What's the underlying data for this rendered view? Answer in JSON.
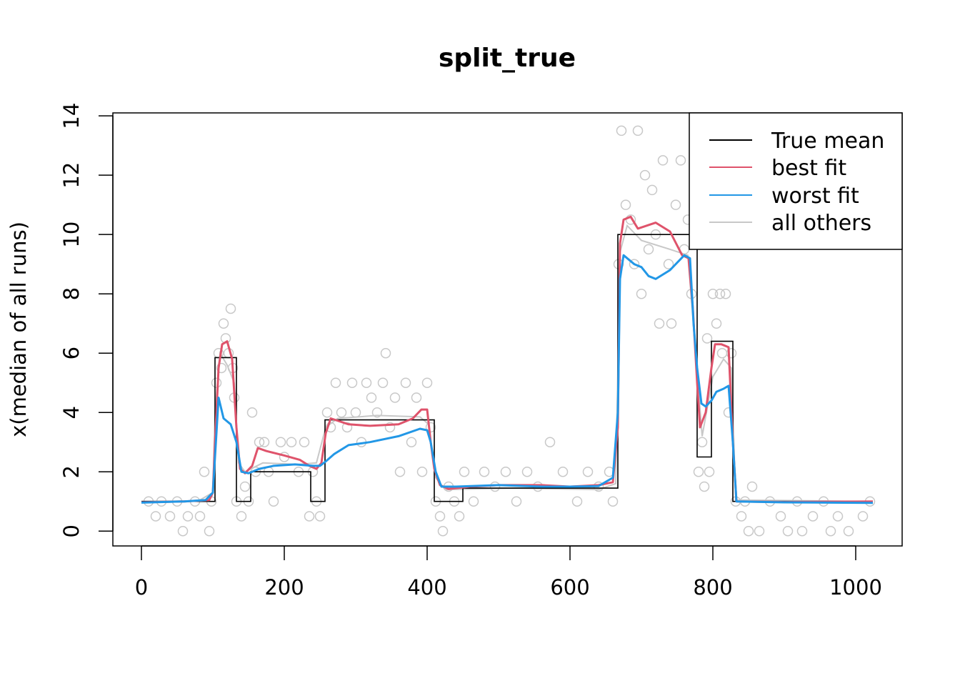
{
  "chart_data": {
    "type": "line",
    "title": "split_true",
    "xlabel": "",
    "ylabel": "x(median of all runs)",
    "xlim": [
      -40,
      1065
    ],
    "ylim": [
      -0.5,
      14.1
    ],
    "x_ticks": [
      0,
      200,
      400,
      600,
      800,
      1000
    ],
    "y_ticks": [
      0,
      2,
      4,
      6,
      8,
      10,
      12,
      14
    ],
    "legend_position": "top-right",
    "legend": [
      {
        "label": "True mean",
        "color": "#000000"
      },
      {
        "label": "best fit",
        "color": "#DF536B"
      },
      {
        "label": "worst fit",
        "color": "#2297E6"
      },
      {
        "label": "all others",
        "color": "#C8C8C8"
      }
    ],
    "true_mean_segments": [
      {
        "x0": 0,
        "x1": 103,
        "y": 1.0
      },
      {
        "x0": 103,
        "x1": 133,
        "y": 5.85
      },
      {
        "x0": 133,
        "x1": 153,
        "y": 1.0
      },
      {
        "x0": 153,
        "x1": 237,
        "y": 2.0
      },
      {
        "x0": 237,
        "x1": 257,
        "y": 1.0
      },
      {
        "x0": 257,
        "x1": 410,
        "y": 3.75
      },
      {
        "x0": 410,
        "x1": 450,
        "y": 1.0
      },
      {
        "x0": 450,
        "x1": 667,
        "y": 1.45
      },
      {
        "x0": 667,
        "x1": 778,
        "y": 10.0
      },
      {
        "x0": 778,
        "x1": 798,
        "y": 2.5
      },
      {
        "x0": 798,
        "x1": 828,
        "y": 6.4
      },
      {
        "x0": 828,
        "x1": 1024,
        "y": 1.0
      }
    ],
    "series": [
      {
        "name": "best fit",
        "color": "#DF536B",
        "points": [
          [
            0,
            0.97
          ],
          [
            60,
            1.0
          ],
          [
            95,
            1.05
          ],
          [
            100,
            1.3
          ],
          [
            103,
            3.0
          ],
          [
            108,
            5.5
          ],
          [
            113,
            6.3
          ],
          [
            120,
            6.4
          ],
          [
            127,
            5.8
          ],
          [
            133,
            3.5
          ],
          [
            138,
            2.1
          ],
          [
            145,
            1.95
          ],
          [
            155,
            2.2
          ],
          [
            163,
            2.8
          ],
          [
            175,
            2.7
          ],
          [
            200,
            2.55
          ],
          [
            222,
            2.4
          ],
          [
            235,
            2.2
          ],
          [
            245,
            2.1
          ],
          [
            252,
            2.3
          ],
          [
            258,
            3.3
          ],
          [
            265,
            3.8
          ],
          [
            290,
            3.6
          ],
          [
            320,
            3.55
          ],
          [
            360,
            3.6
          ],
          [
            380,
            3.8
          ],
          [
            392,
            4.1
          ],
          [
            400,
            4.1
          ],
          [
            405,
            3.0
          ],
          [
            410,
            2.1
          ],
          [
            418,
            1.55
          ],
          [
            430,
            1.42
          ],
          [
            460,
            1.5
          ],
          [
            500,
            1.55
          ],
          [
            560,
            1.55
          ],
          [
            600,
            1.5
          ],
          [
            640,
            1.55
          ],
          [
            660,
            1.65
          ],
          [
            667,
            3.5
          ],
          [
            670,
            9.7
          ],
          [
            675,
            10.5
          ],
          [
            685,
            10.6
          ],
          [
            695,
            10.2
          ],
          [
            720,
            10.4
          ],
          [
            740,
            10.1
          ],
          [
            757,
            9.3
          ],
          [
            766,
            9.2
          ],
          [
            772,
            7.5
          ],
          [
            778,
            5.0
          ],
          [
            782,
            3.5
          ],
          [
            790,
            4.0
          ],
          [
            798,
            5.5
          ],
          [
            803,
            6.3
          ],
          [
            812,
            6.3
          ],
          [
            822,
            6.2
          ],
          [
            828,
            3.0
          ],
          [
            833,
            1.0
          ],
          [
            900,
            0.98
          ],
          [
            1024,
            1.0
          ]
        ]
      },
      {
        "name": "worst fit",
        "color": "#2297E6",
        "points": [
          [
            0,
            0.96
          ],
          [
            60,
            1.0
          ],
          [
            90,
            1.05
          ],
          [
            100,
            1.3
          ],
          [
            103,
            2.5
          ],
          [
            108,
            4.5
          ],
          [
            115,
            3.8
          ],
          [
            125,
            3.6
          ],
          [
            133,
            3.0
          ],
          [
            140,
            2.0
          ],
          [
            150,
            1.95
          ],
          [
            165,
            2.1
          ],
          [
            185,
            2.2
          ],
          [
            215,
            2.25
          ],
          [
            240,
            2.2
          ],
          [
            250,
            2.2
          ],
          [
            258,
            2.35
          ],
          [
            270,
            2.6
          ],
          [
            290,
            2.9
          ],
          [
            320,
            3.0
          ],
          [
            360,
            3.2
          ],
          [
            390,
            3.45
          ],
          [
            400,
            3.4
          ],
          [
            405,
            3.0
          ],
          [
            412,
            2.0
          ],
          [
            420,
            1.5
          ],
          [
            440,
            1.5
          ],
          [
            500,
            1.55
          ],
          [
            560,
            1.5
          ],
          [
            600,
            1.5
          ],
          [
            640,
            1.52
          ],
          [
            660,
            1.8
          ],
          [
            667,
            4.0
          ],
          [
            670,
            8.5
          ],
          [
            675,
            9.3
          ],
          [
            690,
            9.0
          ],
          [
            700,
            8.9
          ],
          [
            710,
            8.6
          ],
          [
            720,
            8.5
          ],
          [
            740,
            8.8
          ],
          [
            760,
            9.3
          ],
          [
            768,
            9.2
          ],
          [
            773,
            7.0
          ],
          [
            778,
            5.5
          ],
          [
            784,
            4.3
          ],
          [
            790,
            4.2
          ],
          [
            798,
            4.4
          ],
          [
            805,
            4.7
          ],
          [
            815,
            4.8
          ],
          [
            822,
            4.9
          ],
          [
            828,
            3.0
          ],
          [
            833,
            1.0
          ],
          [
            900,
            0.97
          ],
          [
            1024,
            0.95
          ]
        ]
      },
      {
        "name": "all others",
        "color": "#C8C8C8",
        "points": [
          [
            0,
            1.0
          ],
          [
            80,
            1.02
          ],
          [
            100,
            1.3
          ],
          [
            103,
            4.0
          ],
          [
            110,
            6.0
          ],
          [
            120,
            5.6
          ],
          [
            130,
            5.0
          ],
          [
            136,
            2.3
          ],
          [
            145,
            2.0
          ],
          [
            170,
            2.3
          ],
          [
            220,
            2.25
          ],
          [
            245,
            2.3
          ],
          [
            258,
            3.5
          ],
          [
            275,
            3.8
          ],
          [
            330,
            3.9
          ],
          [
            390,
            3.85
          ],
          [
            402,
            3.6
          ],
          [
            412,
            1.8
          ],
          [
            425,
            1.4
          ],
          [
            520,
            1.45
          ],
          [
            640,
            1.4
          ],
          [
            664,
            1.6
          ],
          [
            670,
            9.4
          ],
          [
            680,
            10.3
          ],
          [
            700,
            9.8
          ],
          [
            740,
            9.5
          ],
          [
            765,
            9.3
          ],
          [
            772,
            7.2
          ],
          [
            785,
            3.2
          ],
          [
            800,
            5.2
          ],
          [
            815,
            5.8
          ],
          [
            826,
            5.5
          ],
          [
            832,
            1.05
          ],
          [
            1024,
            1.0
          ]
        ]
      }
    ],
    "observations": [
      [
        10,
        1.0
      ],
      [
        20,
        0.5
      ],
      [
        28,
        1.0
      ],
      [
        40,
        0.5
      ],
      [
        50,
        1.0
      ],
      [
        58,
        0.0
      ],
      [
        65,
        0.5
      ],
      [
        75,
        1.0
      ],
      [
        82,
        0.5
      ],
      [
        88,
        2.0
      ],
      [
        95,
        0.0
      ],
      [
        98,
        1.0
      ],
      [
        105,
        5.0
      ],
      [
        108,
        6.0
      ],
      [
        112,
        5.5
      ],
      [
        115,
        7.0
      ],
      [
        118,
        6.5
      ],
      [
        122,
        6.0
      ],
      [
        125,
        7.5
      ],
      [
        128,
        5.5
      ],
      [
        130,
        4.5
      ],
      [
        133,
        1.0
      ],
      [
        140,
        0.5
      ],
      [
        145,
        1.5
      ],
      [
        150,
        1.0
      ],
      [
        155,
        4.0
      ],
      [
        160,
        2.0
      ],
      [
        165,
        3.0
      ],
      [
        172,
        3.0
      ],
      [
        178,
        2.0
      ],
      [
        185,
        1.0
      ],
      [
        195,
        3.0
      ],
      [
        200,
        2.5
      ],
      [
        210,
        3.0
      ],
      [
        220,
        2.0
      ],
      [
        228,
        3.0
      ],
      [
        235,
        0.5
      ],
      [
        240,
        2.0
      ],
      [
        245,
        1.0
      ],
      [
        250,
        0.5
      ],
      [
        260,
        4.0
      ],
      [
        265,
        3.5
      ],
      [
        272,
        5.0
      ],
      [
        280,
        4.0
      ],
      [
        288,
        3.5
      ],
      [
        295,
        5.0
      ],
      [
        300,
        4.0
      ],
      [
        308,
        3.0
      ],
      [
        315,
        5.0
      ],
      [
        322,
        4.5
      ],
      [
        330,
        4.0
      ],
      [
        338,
        5.0
      ],
      [
        342,
        6.0
      ],
      [
        348,
        3.5
      ],
      [
        355,
        4.5
      ],
      [
        362,
        2.0
      ],
      [
        370,
        5.0
      ],
      [
        378,
        3.0
      ],
      [
        385,
        4.5
      ],
      [
        393,
        2.0
      ],
      [
        400,
        5.0
      ],
      [
        405,
        3.5
      ],
      [
        412,
        1.0
      ],
      [
        418,
        0.5
      ],
      [
        422,
        0.0
      ],
      [
        430,
        1.5
      ],
      [
        438,
        1.0
      ],
      [
        445,
        0.5
      ],
      [
        452,
        2.0
      ],
      [
        465,
        1.0
      ],
      [
        480,
        2.0
      ],
      [
        495,
        1.5
      ],
      [
        510,
        2.0
      ],
      [
        525,
        1.0
      ],
      [
        540,
        2.0
      ],
      [
        555,
        1.5
      ],
      [
        572,
        3.0
      ],
      [
        590,
        2.0
      ],
      [
        610,
        1.0
      ],
      [
        625,
        2.0
      ],
      [
        640,
        1.5
      ],
      [
        655,
        2.0
      ],
      [
        660,
        1.0
      ],
      [
        668,
        9.0
      ],
      [
        672,
        13.5
      ],
      [
        678,
        11.0
      ],
      [
        685,
        10.5
      ],
      [
        690,
        9.0
      ],
      [
        695,
        13.5
      ],
      [
        700,
        8.0
      ],
      [
        705,
        12.0
      ],
      [
        710,
        9.5
      ],
      [
        715,
        11.5
      ],
      [
        720,
        10.0
      ],
      [
        725,
        7.0
      ],
      [
        730,
        12.5
      ],
      [
        738,
        9.0
      ],
      [
        742,
        7.0
      ],
      [
        748,
        11.0
      ],
      [
        755,
        12.5
      ],
      [
        760,
        9.5
      ],
      [
        765,
        10.5
      ],
      [
        770,
        8.0
      ],
      [
        780,
        2.0
      ],
      [
        785,
        3.0
      ],
      [
        788,
        1.5
      ],
      [
        792,
        6.5
      ],
      [
        795,
        2.0
      ],
      [
        800,
        8.0
      ],
      [
        805,
        7.0
      ],
      [
        810,
        8.0
      ],
      [
        813,
        6.0
      ],
      [
        818,
        8.0
      ],
      [
        822,
        4.0
      ],
      [
        826,
        6.0
      ],
      [
        832,
        1.0
      ],
      [
        840,
        0.5
      ],
      [
        845,
        1.0
      ],
      [
        850,
        0.0
      ],
      [
        855,
        1.5
      ],
      [
        865,
        0.0
      ],
      [
        880,
        1.0
      ],
      [
        895,
        0.5
      ],
      [
        905,
        0.0
      ],
      [
        918,
        1.0
      ],
      [
        925,
        0.0
      ],
      [
        940,
        0.5
      ],
      [
        955,
        1.0
      ],
      [
        965,
        0.0
      ],
      [
        975,
        0.5
      ],
      [
        990,
        0.0
      ],
      [
        1010,
        0.5
      ],
      [
        1020,
        1.0
      ]
    ]
  }
}
